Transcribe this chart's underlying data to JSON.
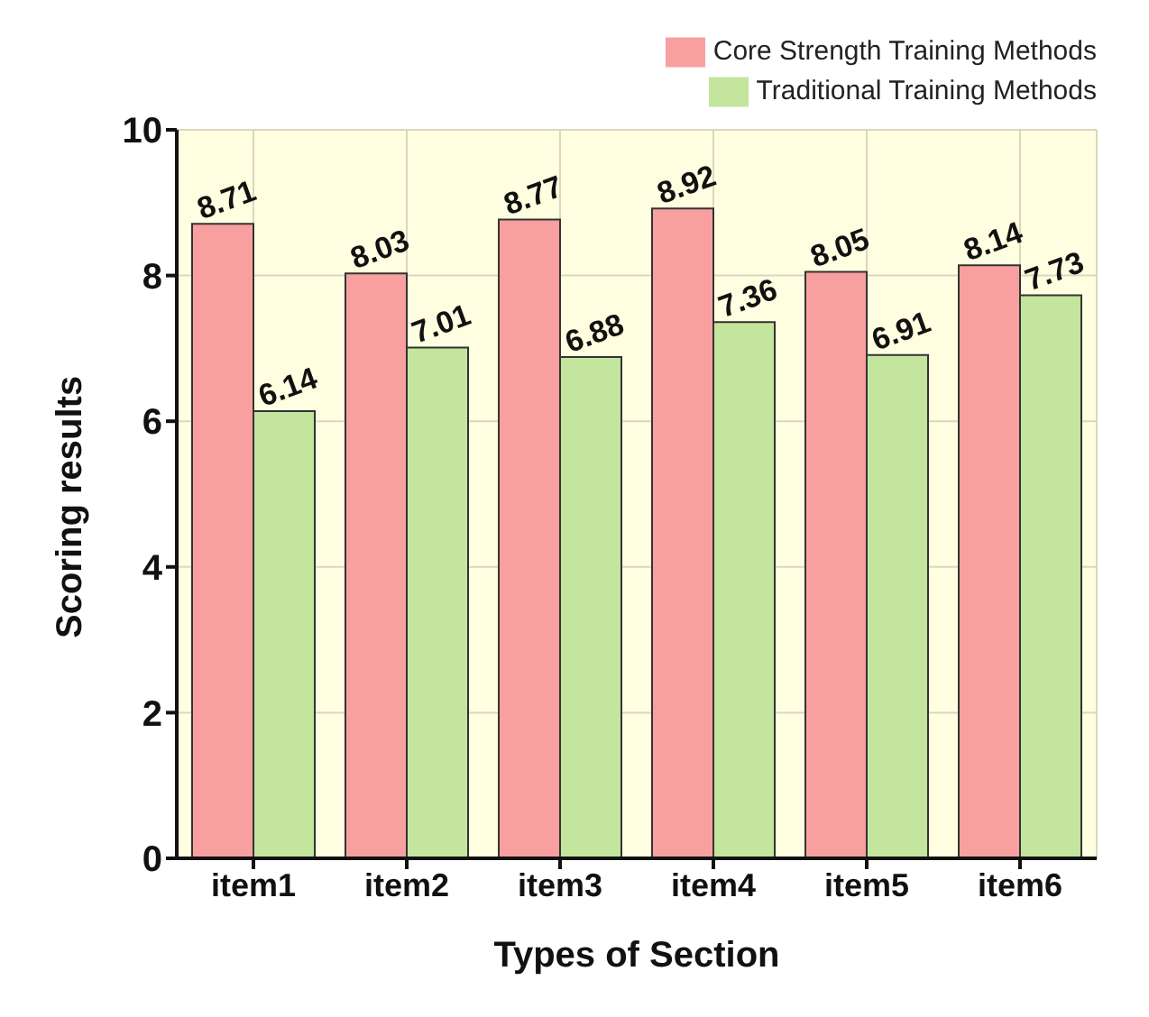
{
  "chart_data": {
    "type": "bar",
    "xlabel": "Types of Section",
    "ylabel": "Scoring results",
    "categories": [
      "item1",
      "item2",
      "item3",
      "item4",
      "item5",
      "item6"
    ],
    "series": [
      {
        "name": "Core Strength Training Methods",
        "color": "#f8a0a0",
        "values": [
          8.71,
          8.03,
          8.77,
          8.92,
          8.05,
          8.14
        ]
      },
      {
        "name": "Traditional Training Methods",
        "color": "#c3e59e",
        "values": [
          6.14,
          7.01,
          6.88,
          7.36,
          6.91,
          7.73
        ]
      }
    ],
    "ylim": [
      0,
      10
    ],
    "yticks": [
      0,
      2,
      4,
      6,
      8,
      10
    ],
    "grid": true,
    "legend": "top right",
    "data_labels": true
  }
}
